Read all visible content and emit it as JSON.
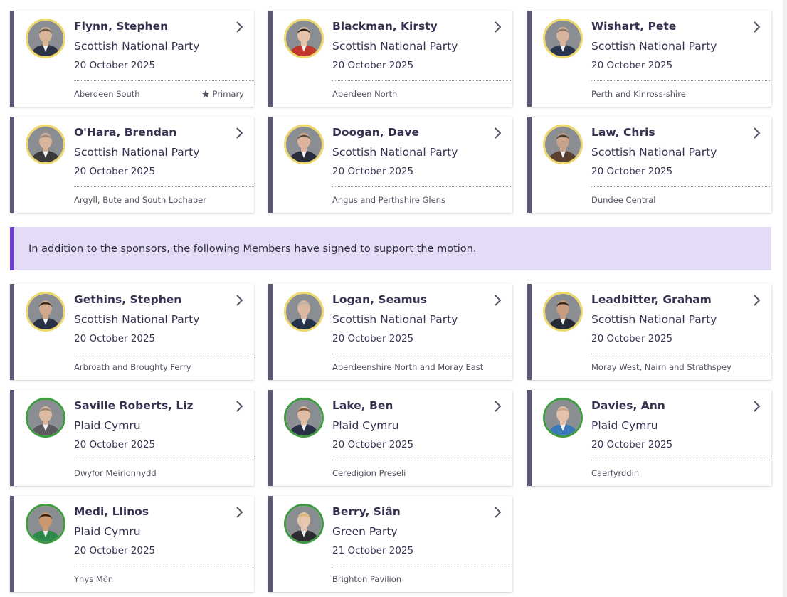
{
  "notice": {
    "text": "In addition to the sponsors, the following Members have signed to support the motion."
  },
  "sponsors": [
    {
      "name": "Flynn, Stephen",
      "party": "Scottish National Party",
      "date": "20 October 2025",
      "constituency": "Aberdeen South",
      "primary_label": "Primary",
      "frame": "gold",
      "skin": "#d9b59a",
      "hair": "#6b5a4a",
      "suit": "#2d3446"
    },
    {
      "name": "Blackman, Kirsty",
      "party": "Scottish National Party",
      "date": "20 October 2025",
      "constituency": "Aberdeen North",
      "frame": "gold",
      "skin": "#e6c2a8",
      "hair": "#2b2220",
      "suit": "#c0392b"
    },
    {
      "name": "Wishart, Pete",
      "party": "Scottish National Party",
      "date": "20 October 2025",
      "constituency": "Perth and Kinross-shire",
      "frame": "gold",
      "skin": "#d7b49c",
      "hair": "#8c7a6a",
      "suit": "#2a3550"
    },
    {
      "name": "O'Hara, Brendan",
      "party": "Scottish National Party",
      "date": "20 October 2025",
      "constituency": "Argyll, Bute and South Lochaber",
      "frame": "gold",
      "skin": "#d9b39a",
      "hair": "#9a8c80",
      "suit": "#3a3a3a"
    },
    {
      "name": "Doogan, Dave",
      "party": "Scottish National Party",
      "date": "20 October 2025",
      "constituency": "Angus and Perthshire Glens",
      "frame": "gold",
      "skin": "#dcb39a",
      "hair": "#5a4a3c",
      "suit": "#2a2e3c"
    },
    {
      "name": "Law, Chris",
      "party": "Scottish National Party",
      "date": "20 October 2025",
      "constituency": "Dundee Central",
      "frame": "gold",
      "skin": "#c9a28a",
      "hair": "#4a3a30",
      "suit": "#5a4030"
    }
  ],
  "supporters": [
    {
      "name": "Gethins, Stephen",
      "party": "Scottish National Party",
      "date": "20 October 2025",
      "constituency": "Arbroath and Broughty Ferry",
      "frame": "gold",
      "skin": "#d2a98e",
      "hair": "#3a2e26",
      "suit": "#2a3046"
    },
    {
      "name": "Logan, Seamus",
      "party": "Scottish National Party",
      "date": "20 October 2025",
      "constituency": "Aberdeenshire North and Moray East",
      "frame": "gold",
      "skin": "#dcb8a0",
      "hair": "#bcb4ac",
      "suit": "#263248"
    },
    {
      "name": "Leadbitter, Graham",
      "party": "Scottish National Party",
      "date": "20 October 2025",
      "constituency": "Moray West, Nairn and Strathspey",
      "frame": "gold",
      "skin": "#c99c80",
      "hair": "#3c3028",
      "suit": "#262a36"
    },
    {
      "name": "Saville Roberts, Liz",
      "party": "Plaid Cymru",
      "date": "20 October 2025",
      "constituency": "Dwyfor Meirionnydd",
      "frame": "green",
      "skin": "#dcbaa2",
      "hair": "#9c8a78",
      "suit": "#5c5a60"
    },
    {
      "name": "Lake, Ben",
      "party": "Plaid Cymru",
      "date": "20 October 2025",
      "constituency": "Ceredigion Preseli",
      "frame": "green",
      "skin": "#e0bca2",
      "hair": "#7a5a3c",
      "suit": "#2a3146"
    },
    {
      "name": "Davies, Ann",
      "party": "Plaid Cymru",
      "date": "20 October 2025",
      "constituency": "Caerfyrddin",
      "frame": "green",
      "skin": "#e4c0a8",
      "hair": "#c9a890",
      "suit": "#3a7ab8"
    },
    {
      "name": "Medi, Llinos",
      "party": "Plaid Cymru",
      "date": "20 October 2025",
      "constituency": "Ynys Môn",
      "frame": "green",
      "skin": "#c9986e",
      "hair": "#3a2618",
      "suit": "#2e8a4a"
    },
    {
      "name": "Berry, Siân",
      "party": "Green Party",
      "date": "21 October 2025",
      "constituency": "Brighton Pavilion",
      "frame": "green",
      "skin": "#e6c6ae",
      "hair": "#d8b870",
      "suit": "#2a2a30"
    }
  ],
  "icons": {
    "chevron": "chevron-right-icon",
    "star": "star-icon",
    "avatar": "member-photo"
  },
  "colors": {
    "card_accent": "#5b5878",
    "notice_bg": "#e4dcf6",
    "notice_accent": "#6b3fc6",
    "gold_frame": "#efd86b",
    "green_frame": "#3f9b3f"
  }
}
